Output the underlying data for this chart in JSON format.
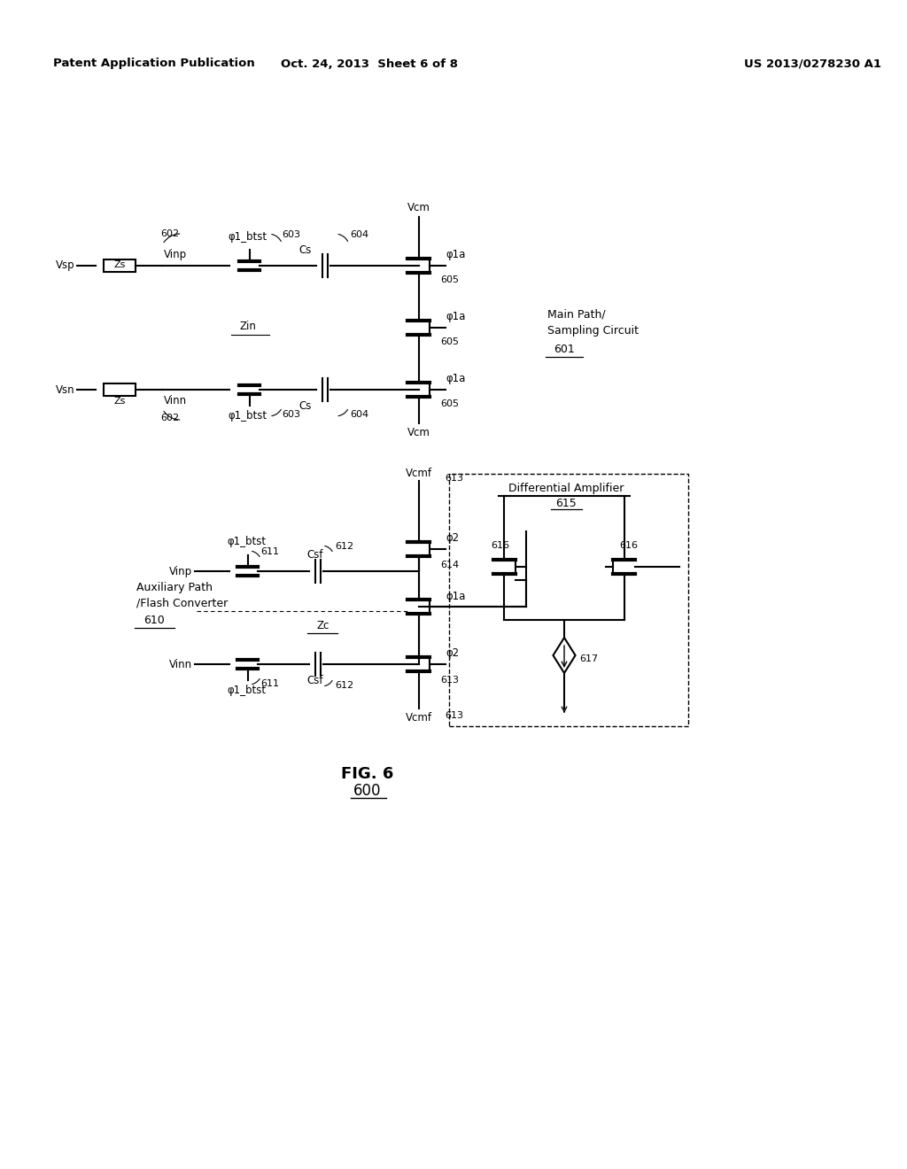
{
  "bg_color": "#ffffff",
  "header_left": "Patent Application Publication",
  "header_mid": "Oct. 24, 2013  Sheet 6 of 8",
  "header_right": "US 2013/0278230 A1",
  "fig_label": "FIG. 6",
  "fig_number": "600"
}
